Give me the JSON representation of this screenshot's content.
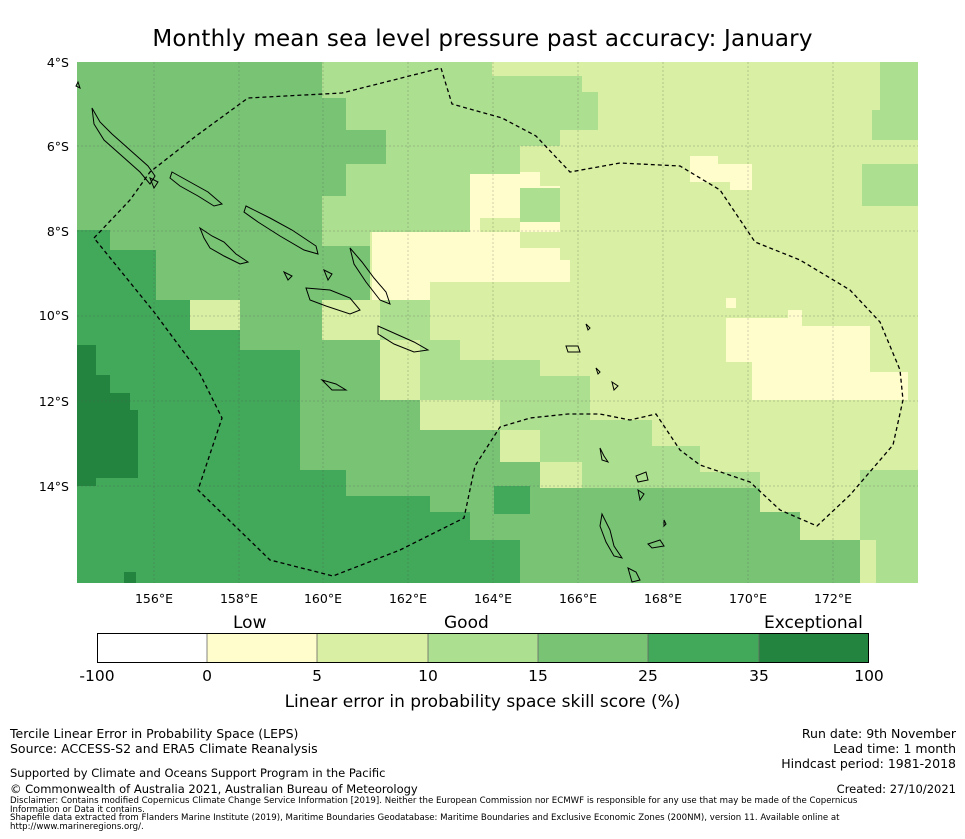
{
  "title": "Monthly mean sea level pressure past accuracy: January",
  "map": {
    "latitude_labels": [
      "4°S",
      "6°S",
      "8°S",
      "10°S",
      "12°S",
      "14°S"
    ],
    "longitude_labels": [
      "156°E",
      "158°E",
      "160°E",
      "162°E",
      "164°E",
      "166°E",
      "168°E",
      "170°E",
      "172°E"
    ],
    "colors": {
      "exceptional_dark": "#23843f",
      "very_good": "#42a85a",
      "good_mid": "#78c474",
      "good_light": "#addf91",
      "low_good": "#d9efa3",
      "low": "#fffdcc",
      "none": "#ffffff",
      "coastline": "#000000"
    }
  },
  "colorbar": {
    "categories": [
      "Low",
      "Good",
      "Exceptional"
    ],
    "ticks": [
      "-100",
      "0",
      "5",
      "10",
      "15",
      "25",
      "35",
      "100"
    ],
    "colors": [
      "#ffffff",
      "#fffdcc",
      "#d9efa3",
      "#addf91",
      "#78c474",
      "#42a85a",
      "#23843f"
    ],
    "label": "Linear error in probability space skill score (%)"
  },
  "footer": {
    "method": "Tercile Linear Error in Probability Space (LEPS)",
    "source": "Source: ACCESS-S2 and ERA5 Climate Reanalysis",
    "supported": "Supported by Climate and Oceans Support Program in the Pacific",
    "copyright": "© Commonwealth of Australia 2021, Australian Bureau of Meteorology",
    "disclaimer_1": "Disclaimer: Contains modified Copernicus Climate Change Service Information [2019]. Neither the European Commission nor ECMWF is responsible for any use that may be made of the Copernicus",
    "disclaimer_2": "Information or Data it contains.",
    "shapefile_1": "Shapefile data extracted from Flanders Marine Institute (2019), Maritime Boundaries Geodatabase: Maritime Boundaries and Exclusive Economic Zones (200NM), version 11. Available online at",
    "shapefile_2": "http://www.marineregions.org/.",
    "run_date": "Run date: 9th November",
    "lead_time": "Lead time: 1 month",
    "hindcast": "Hindcast period: 1981-2018",
    "created": "Created: 27/10/2021"
  }
}
